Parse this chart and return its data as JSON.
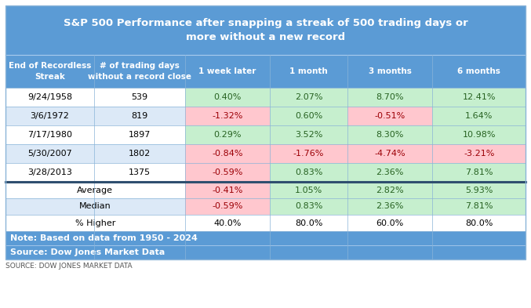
{
  "title_line1": "S&P 500 Performance after snapping a streak of 500 trading days or",
  "title_line2": "more without a new record",
  "col_headers_line1": [
    "End of Recordless",
    "# of trading days",
    "1 week later",
    "1 month",
    "3 months",
    "6 months"
  ],
  "col_headers_line2": [
    "Streak",
    "without a record close",
    "",
    "",
    "",
    ""
  ],
  "rows": [
    [
      "9/24/1958",
      "539",
      "0.40%",
      "2.07%",
      "8.70%",
      "12.41%"
    ],
    [
      "3/6/1972",
      "819",
      "-1.32%",
      "0.60%",
      "-0.51%",
      "1.64%"
    ],
    [
      "7/17/1980",
      "1897",
      "0.29%",
      "3.52%",
      "8.30%",
      "10.98%"
    ],
    [
      "5/30/2007",
      "1802",
      "-0.84%",
      "-1.76%",
      "-4.74%",
      "-3.21%"
    ],
    [
      "3/28/2013",
      "1375",
      "-0.59%",
      "0.83%",
      "2.36%",
      "7.81%"
    ]
  ],
  "summary_labels": [
    "Average",
    "Median",
    "% Higher"
  ],
  "summary_vals": [
    [
      "-0.41%",
      "1.05%",
      "2.82%",
      "5.93%"
    ],
    [
      "-0.59%",
      "0.83%",
      "2.36%",
      "7.81%"
    ],
    [
      "40.0%",
      "80.0%",
      "60.0%",
      "80.0%"
    ]
  ],
  "note_line1": "Note: Based on data from 1950 - 2024",
  "note_line2": "Source: Dow Jones Market Data",
  "source_label": "SOURCE: DOW JONES MARKET DATA",
  "title_bg": "#5b9bd5",
  "header_bg": "#5b9bd5",
  "note_bg": "#5b9bd5",
  "row_bg_white": "#ffffff",
  "row_bg_blue": "#dce9f7",
  "green_bg": "#c6efce",
  "red_bg": "#ffc7ce",
  "green_text": "#276221",
  "red_text": "#9c0006",
  "black_text": "#000000",
  "white_text": "#ffffff",
  "divider_light": "#8ab4d8",
  "divider_dark": "#2f4f6f"
}
